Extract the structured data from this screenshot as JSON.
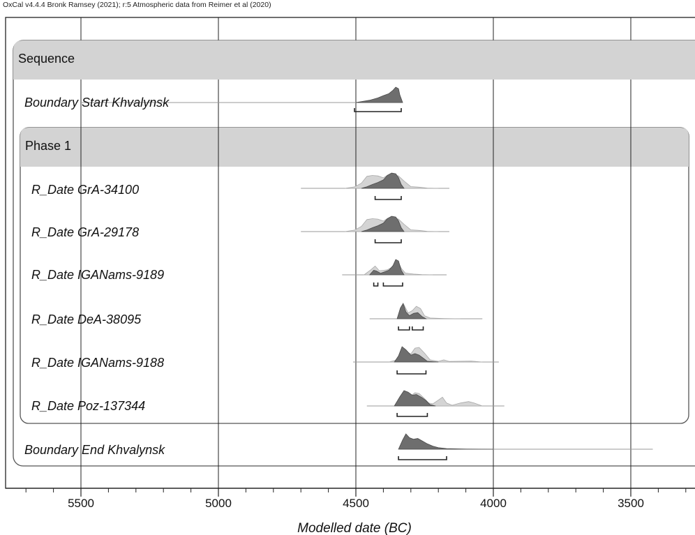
{
  "header": "OxCal v4.4.4 Bronk Ramsey (2021); r:5 Atmospheric data from Reimer et al (2020)",
  "chart_data": {
    "type": "area",
    "xlabel": "Modelled date (BC)",
    "x_axis": {
      "ticks": [
        5500,
        5000,
        4500,
        4000,
        3500
      ],
      "xlim": [
        5770,
        3210
      ],
      "reversed": true,
      "minor_step": 100
    },
    "grid": true,
    "groups": {
      "sequence_label": "Sequence",
      "phase_label": "Phase 1"
    },
    "rows": [
      {
        "label": "Boundary Start Khvalynsk",
        "prior_span": [
          5500,
          4330
        ],
        "posterior": [
          [
            4500,
            0
          ],
          [
            4450,
            0.15
          ],
          [
            4420,
            0.3
          ],
          [
            4400,
            0.45
          ],
          [
            4380,
            0.58
          ],
          [
            4365,
            0.8
          ],
          [
            4355,
            1.0
          ],
          [
            4345,
            0.9
          ],
          [
            4340,
            0.5
          ],
          [
            4330,
            0
          ]
        ],
        "hpd": [
          [
            4505,
            4335
          ]
        ]
      },
      {
        "label": "R_Date GrA-34100",
        "prior_span": [
          4700,
          4160
        ],
        "likelihood": [
          [
            4540,
            0
          ],
          [
            4505,
            0.1
          ],
          [
            4480,
            0.35
          ],
          [
            4460,
            0.82
          ],
          [
            4440,
            0.88
          ],
          [
            4420,
            0.85
          ],
          [
            4400,
            0.72
          ],
          [
            4385,
            0.9
          ],
          [
            4365,
            0.95
          ],
          [
            4345,
            0.85
          ],
          [
            4325,
            0.5
          ],
          [
            4300,
            0.12
          ],
          [
            4270,
            0.08
          ],
          [
            4240,
            0.02
          ],
          [
            4200,
            0
          ]
        ],
        "posterior": [
          [
            4480,
            0
          ],
          [
            4460,
            0.1
          ],
          [
            4440,
            0.25
          ],
          [
            4420,
            0.38
          ],
          [
            4400,
            0.55
          ],
          [
            4385,
            0.85
          ],
          [
            4370,
            1.0
          ],
          [
            4355,
            0.95
          ],
          [
            4345,
            0.7
          ],
          [
            4335,
            0.25
          ],
          [
            4325,
            0
          ]
        ],
        "hpd": [
          [
            4430,
            4335
          ]
        ]
      },
      {
        "label": "R_Date GrA-29178",
        "prior_span": [
          4700,
          4160
        ],
        "likelihood": [
          [
            4540,
            0
          ],
          [
            4505,
            0.1
          ],
          [
            4480,
            0.35
          ],
          [
            4460,
            0.82
          ],
          [
            4440,
            0.88
          ],
          [
            4420,
            0.85
          ],
          [
            4400,
            0.72
          ],
          [
            4385,
            0.9
          ],
          [
            4365,
            0.95
          ],
          [
            4345,
            0.85
          ],
          [
            4325,
            0.5
          ],
          [
            4300,
            0.12
          ],
          [
            4270,
            0.08
          ],
          [
            4240,
            0.02
          ],
          [
            4200,
            0
          ]
        ],
        "posterior": [
          [
            4480,
            0
          ],
          [
            4460,
            0.1
          ],
          [
            4440,
            0.25
          ],
          [
            4420,
            0.38
          ],
          [
            4400,
            0.55
          ],
          [
            4385,
            0.85
          ],
          [
            4370,
            1.0
          ],
          [
            4355,
            0.95
          ],
          [
            4345,
            0.7
          ],
          [
            4335,
            0.25
          ],
          [
            4325,
            0
          ]
        ],
        "hpd": [
          [
            4430,
            4335
          ]
        ]
      },
      {
        "label": "R_Date IGANams-9189",
        "prior_span": [
          4550,
          4170
        ],
        "likelihood": [
          [
            4470,
            0
          ],
          [
            4445,
            0.35
          ],
          [
            4430,
            0.6
          ],
          [
            4415,
            0.28
          ],
          [
            4400,
            0.3
          ],
          [
            4385,
            0.35
          ],
          [
            4370,
            0.5
          ],
          [
            4355,
            0.9
          ],
          [
            4345,
            0.85
          ],
          [
            4335,
            0.45
          ],
          [
            4320,
            0.12
          ],
          [
            4290,
            0.05
          ],
          [
            4260,
            0.02
          ],
          [
            4220,
            0
          ]
        ],
        "posterior": [
          [
            4450,
            0
          ],
          [
            4435,
            0.3
          ],
          [
            4425,
            0.25
          ],
          [
            4410,
            0.1
          ],
          [
            4395,
            0.2
          ],
          [
            4380,
            0.3
          ],
          [
            4365,
            0.6
          ],
          [
            4355,
            1.0
          ],
          [
            4345,
            0.9
          ],
          [
            4335,
            0.3
          ],
          [
            4325,
            0
          ]
        ],
        "hpd": [
          [
            4435,
            4420
          ],
          [
            4400,
            4330
          ]
        ]
      },
      {
        "label": "R_Date DeA-38095",
        "prior_span": [
          4450,
          4040
        ],
        "likelihood": [
          [
            4350,
            0
          ],
          [
            4335,
            0.6
          ],
          [
            4325,
            0.95
          ],
          [
            4310,
            0.4
          ],
          [
            4295,
            0.55
          ],
          [
            4280,
            0.85
          ],
          [
            4265,
            0.7
          ],
          [
            4250,
            0.2
          ],
          [
            4230,
            0.05
          ],
          [
            4180,
            0.02
          ],
          [
            4120,
            0
          ]
        ],
        "posterior": [
          [
            4350,
            0
          ],
          [
            4338,
            0.7
          ],
          [
            4328,
            1.0
          ],
          [
            4318,
            0.45
          ],
          [
            4305,
            0.2
          ],
          [
            4290,
            0.35
          ],
          [
            4275,
            0.4
          ],
          [
            4260,
            0.15
          ],
          [
            4245,
            0
          ]
        ],
        "hpd": [
          [
            4345,
            4305
          ],
          [
            4295,
            4255
          ]
        ]
      },
      {
        "label": "R_Date IGANams-9188",
        "prior_span": [
          4510,
          3980
        ],
        "likelihood": [
          [
            4380,
            0
          ],
          [
            4350,
            0.15
          ],
          [
            4330,
            0.9
          ],
          [
            4315,
            0.7
          ],
          [
            4300,
            0.55
          ],
          [
            4285,
            0.95
          ],
          [
            4270,
            1.0
          ],
          [
            4250,
            0.6
          ],
          [
            4230,
            0.15
          ],
          [
            4200,
            0.05
          ],
          [
            4180,
            0.15
          ],
          [
            4160,
            0.04
          ],
          [
            4080,
            0.06
          ],
          [
            4040,
            0
          ]
        ],
        "posterior": [
          [
            4360,
            0
          ],
          [
            4345,
            0.4
          ],
          [
            4332,
            1.0
          ],
          [
            4318,
            0.8
          ],
          [
            4300,
            0.45
          ],
          [
            4285,
            0.55
          ],
          [
            4270,
            0.45
          ],
          [
            4255,
            0.25
          ],
          [
            4240,
            0.05
          ],
          [
            4200,
            0
          ]
        ],
        "hpd": [
          [
            4350,
            4245
          ]
        ]
      },
      {
        "label": "R_Date Poz-137344",
        "prior_span": [
          4460,
          3960
        ],
        "likelihood": [
          [
            4360,
            0
          ],
          [
            4335,
            0.75
          ],
          [
            4315,
            0.8
          ],
          [
            4300,
            0.7
          ],
          [
            4285,
            0.9
          ],
          [
            4270,
            0.85
          ],
          [
            4250,
            0.5
          ],
          [
            4235,
            0.2
          ],
          [
            4220,
            0.15
          ],
          [
            4200,
            0.4
          ],
          [
            4185,
            0.6
          ],
          [
            4170,
            0.2
          ],
          [
            4150,
            0.05
          ],
          [
            4120,
            0.2
          ],
          [
            4090,
            0.3
          ],
          [
            4070,
            0.2
          ],
          [
            4040,
            0
          ]
        ],
        "posterior": [
          [
            4360,
            0
          ],
          [
            4340,
            0.6
          ],
          [
            4325,
            1.0
          ],
          [
            4310,
            0.9
          ],
          [
            4295,
            0.7
          ],
          [
            4280,
            0.75
          ],
          [
            4260,
            0.55
          ],
          [
            4245,
            0.35
          ],
          [
            4230,
            0.08
          ],
          [
            4210,
            0
          ]
        ],
        "hpd": [
          [
            4350,
            4240
          ]
        ]
      },
      {
        "label": "Boundary End Khvalynsk",
        "prior_span": [
          4340,
          3420
        ],
        "posterior": [
          [
            4345,
            0
          ],
          [
            4330,
            0.6
          ],
          [
            4318,
            1.0
          ],
          [
            4305,
            0.75
          ],
          [
            4290,
            0.65
          ],
          [
            4275,
            0.7
          ],
          [
            4260,
            0.55
          ],
          [
            4240,
            0.35
          ],
          [
            4220,
            0.2
          ],
          [
            4200,
            0.1
          ],
          [
            4170,
            0.04
          ],
          [
            4100,
            0.01
          ],
          [
            4000,
            0
          ]
        ],
        "hpd": [
          [
            4345,
            4170
          ]
        ]
      }
    ],
    "colors": {
      "posterior": "#6e6e6e",
      "likelihood": "#d4d4d4",
      "group_header": "#d3d3d3",
      "axis": "#222222"
    }
  }
}
